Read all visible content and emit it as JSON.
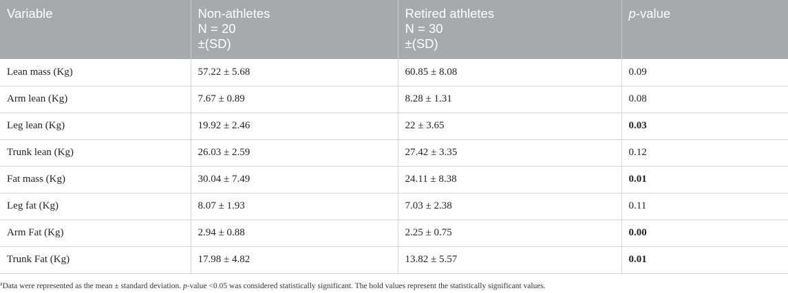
{
  "table": {
    "headers": {
      "variable": "Variable",
      "non_athletes": {
        "line1": "Non-athletes",
        "line2": "N = 20",
        "line3": "±(SD)"
      },
      "retired": {
        "line1": "Retired athletes",
        "line2": "N = 30",
        "line3": "±(SD)"
      },
      "pvalue": {
        "italic": "p",
        "rest": "-value"
      }
    },
    "rows": [
      {
        "variable": "Lean mass (Kg)",
        "non_athletes": "57.22 ± 5.68",
        "retired": "60.85 ± 8.08",
        "p": "0.09",
        "significant": false
      },
      {
        "variable": "Arm lean (Kg)",
        "non_athletes": "7.67 ± 0.89",
        "retired": "8.28 ± 1.31",
        "p": "0.08",
        "significant": false
      },
      {
        "variable": "Leg lean (Kg)",
        "non_athletes": "19.92 ± 2.46",
        "retired": "22 ± 3.65",
        "p": "0.03",
        "significant": true
      },
      {
        "variable": "Trunk lean (Kg)",
        "non_athletes": "26.03 ± 2.59",
        "retired": "27.42 ± 3.35",
        "p": "0.12",
        "significant": false
      },
      {
        "variable": "Fat mass (Kg)",
        "non_athletes": "30.04 ± 7.49",
        "retired": "24.11 ± 8.38",
        "p": "0.01",
        "significant": true
      },
      {
        "variable": "Leg fat (Kg)",
        "non_athletes": "8.07 ± 1.93",
        "retired": "7.03 ± 2.38",
        "p": "0.11",
        "significant": false
      },
      {
        "variable": "Arm Fat (Kg)",
        "non_athletes": "2.94 ± 0.88",
        "retired": "2.25 ± 0.75",
        "p": "0.00",
        "significant": true
      },
      {
        "variable": "Trunk Fat (Kg)",
        "non_athletes": "17.98 ± 4.82",
        "retired": "13.82 ± 5.57",
        "p": "0.01",
        "significant": true
      }
    ]
  },
  "footnote": {
    "marker": "a",
    "text1": "Data were represented as the mean ± standard deviation. ",
    "italic": "p",
    "text2": "-value <0.05 was considered statistically significant. The bold values represent the statistically significant values."
  }
}
